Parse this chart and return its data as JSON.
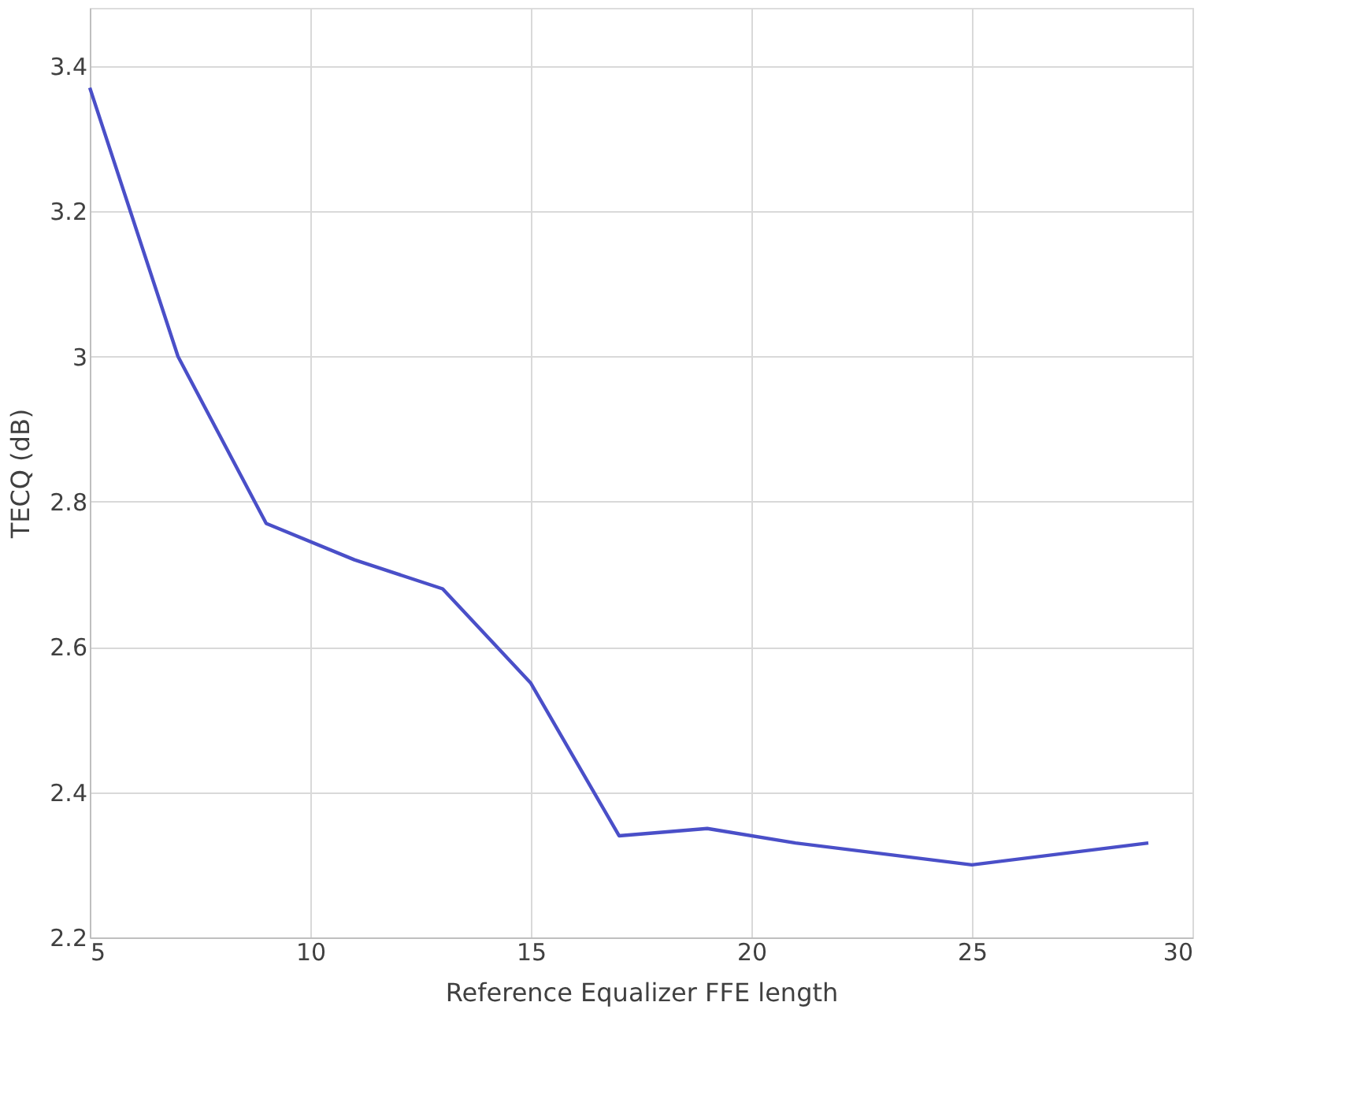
{
  "chart_data": {
    "type": "line",
    "xlabel": "Reference Equalizer FFE length",
    "ylabel": "TECQ (dB)",
    "x": [
      5,
      7,
      9,
      11,
      13,
      15,
      17,
      19,
      21,
      25,
      29
    ],
    "series": [
      {
        "color": "#4a4fc8",
        "values": [
          3.37,
          3.0,
          2.77,
          2.72,
          2.68,
          2.55,
          2.34,
          2.35,
          2.33,
          2.3,
          2.33
        ]
      }
    ],
    "xlim": [
      5,
      30
    ],
    "xticks": [
      5,
      10,
      15,
      20,
      25,
      30
    ],
    "ylim": [
      2.2,
      3.48
    ],
    "yticks": [
      2.2,
      2.4,
      2.6,
      2.8,
      3,
      3.2,
      3.4
    ],
    "grid": true,
    "marker": "none",
    "line_style": "solid"
  }
}
